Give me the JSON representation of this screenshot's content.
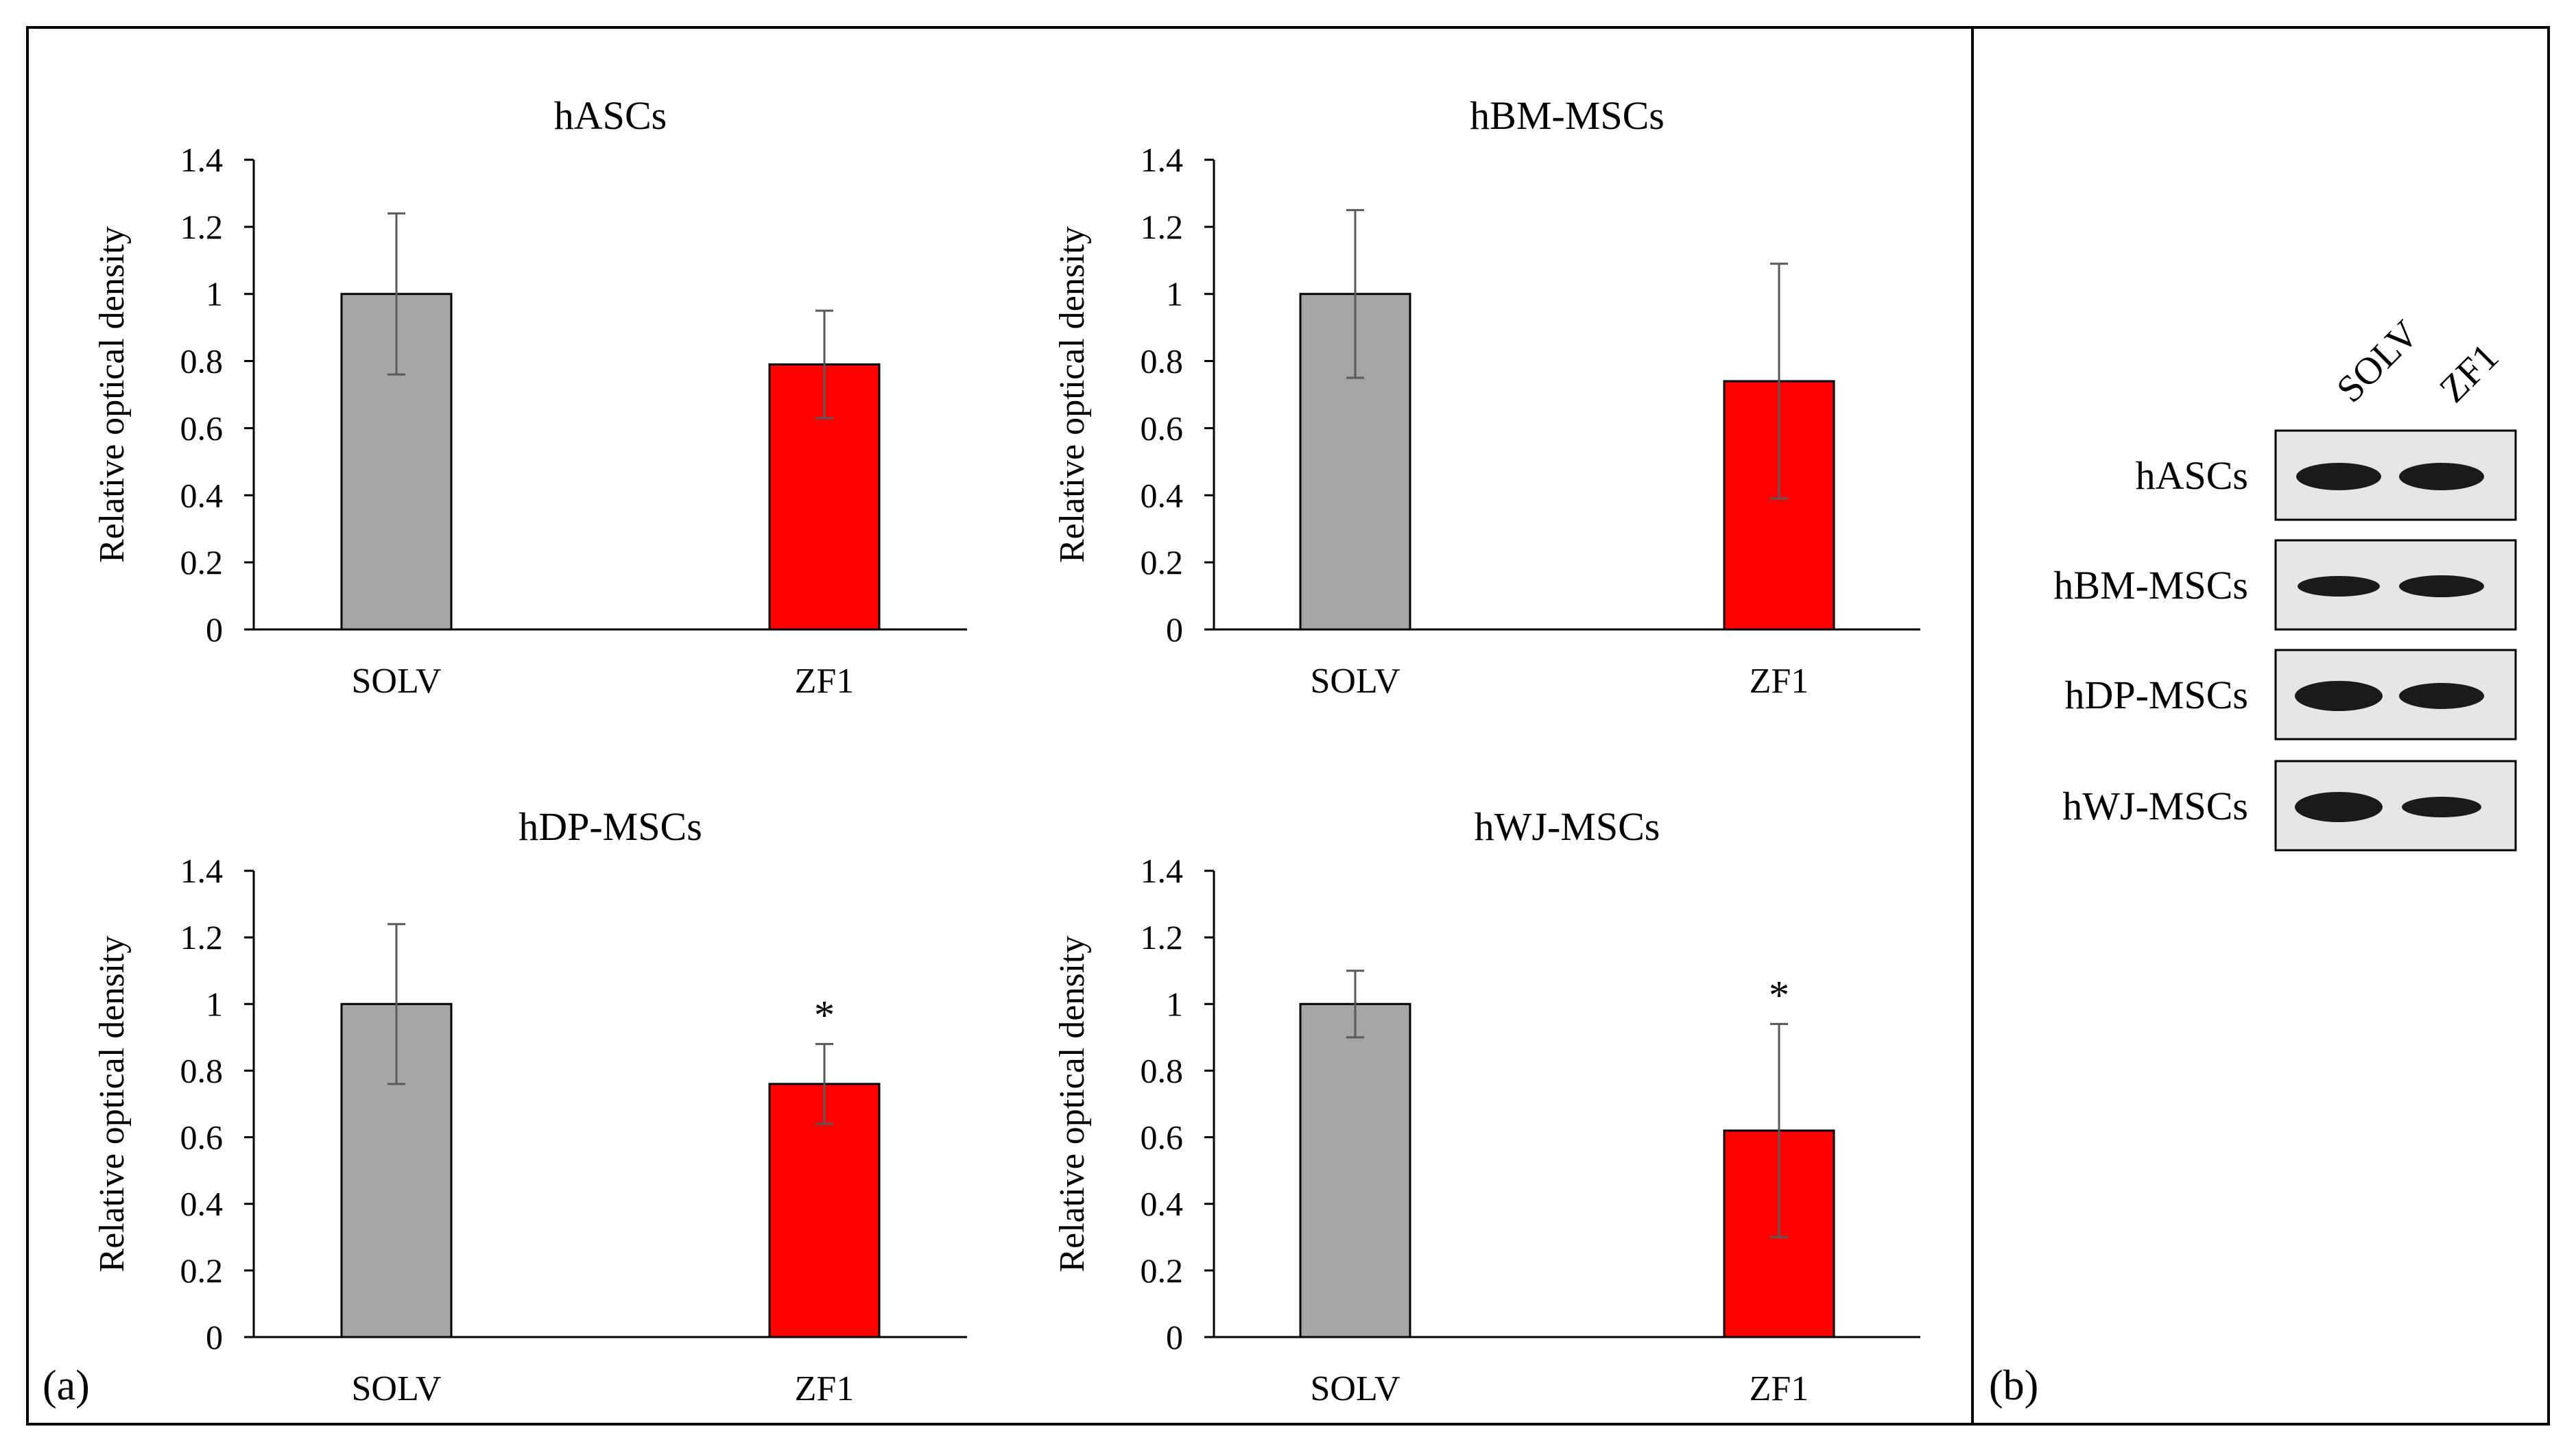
{
  "figure": {
    "panel_a_label": "(a)",
    "panel_b_label": "(b)"
  },
  "colors": {
    "solv": "#a6a6a6",
    "zf1": "#ff0000",
    "error_bar": "#5a5a5a",
    "axis": "#000000"
  },
  "chart_data": [
    {
      "type": "bar",
      "title": "hASCs",
      "ylabel": "Relative optical density",
      "xlabel": "",
      "categories": [
        "SOLV",
        "ZF1"
      ],
      "values": [
        1.0,
        0.79
      ],
      "errors": [
        0.24,
        0.16
      ],
      "annotations": [
        "",
        ""
      ],
      "ylim": [
        0,
        1.4
      ],
      "yticks": [
        "0",
        "0.2",
        "0.4",
        "0.6",
        "0.8",
        "1",
        "1.2",
        "1.4"
      ],
      "grid": false
    },
    {
      "type": "bar",
      "title": "hBM-MSCs",
      "ylabel": "Relative optical density",
      "xlabel": "",
      "categories": [
        "SOLV",
        "ZF1"
      ],
      "values": [
        1.0,
        0.74
      ],
      "errors": [
        0.25,
        0.35
      ],
      "annotations": [
        "",
        ""
      ],
      "ylim": [
        0,
        1.4
      ],
      "yticks": [
        "0",
        "0.2",
        "0.4",
        "0.6",
        "0.8",
        "1",
        "1.2",
        "1.4"
      ],
      "grid": false
    },
    {
      "type": "bar",
      "title": "hDP-MSCs",
      "ylabel": "Relative optical density",
      "xlabel": "",
      "categories": [
        "SOLV",
        "ZF1"
      ],
      "values": [
        1.0,
        0.76
      ],
      "errors": [
        0.24,
        0.12
      ],
      "annotations": [
        "",
        "*"
      ],
      "ylim": [
        0,
        1.4
      ],
      "yticks": [
        "0",
        "0.2",
        "0.4",
        "0.6",
        "0.8",
        "1",
        "1.2",
        "1.4"
      ],
      "grid": false
    },
    {
      "type": "bar",
      "title": "hWJ-MSCs",
      "ylabel": "Relative optical density",
      "xlabel": "",
      "categories": [
        "SOLV",
        "ZF1"
      ],
      "values": [
        1.0,
        0.62
      ],
      "errors": [
        0.1,
        0.32
      ],
      "annotations": [
        "",
        "*"
      ],
      "ylim": [
        0,
        1.4
      ],
      "yticks": [
        "0",
        "0.2",
        "0.4",
        "0.6",
        "0.8",
        "1",
        "1.2",
        "1.4"
      ],
      "grid": false
    }
  ],
  "western_blot": {
    "lanes": [
      "SOLV",
      "ZF1"
    ],
    "rows": [
      {
        "label": "hASCs"
      },
      {
        "label": "hBM-MSCs"
      },
      {
        "label": "hDP-MSCs"
      },
      {
        "label": "hWJ-MSCs"
      }
    ]
  }
}
